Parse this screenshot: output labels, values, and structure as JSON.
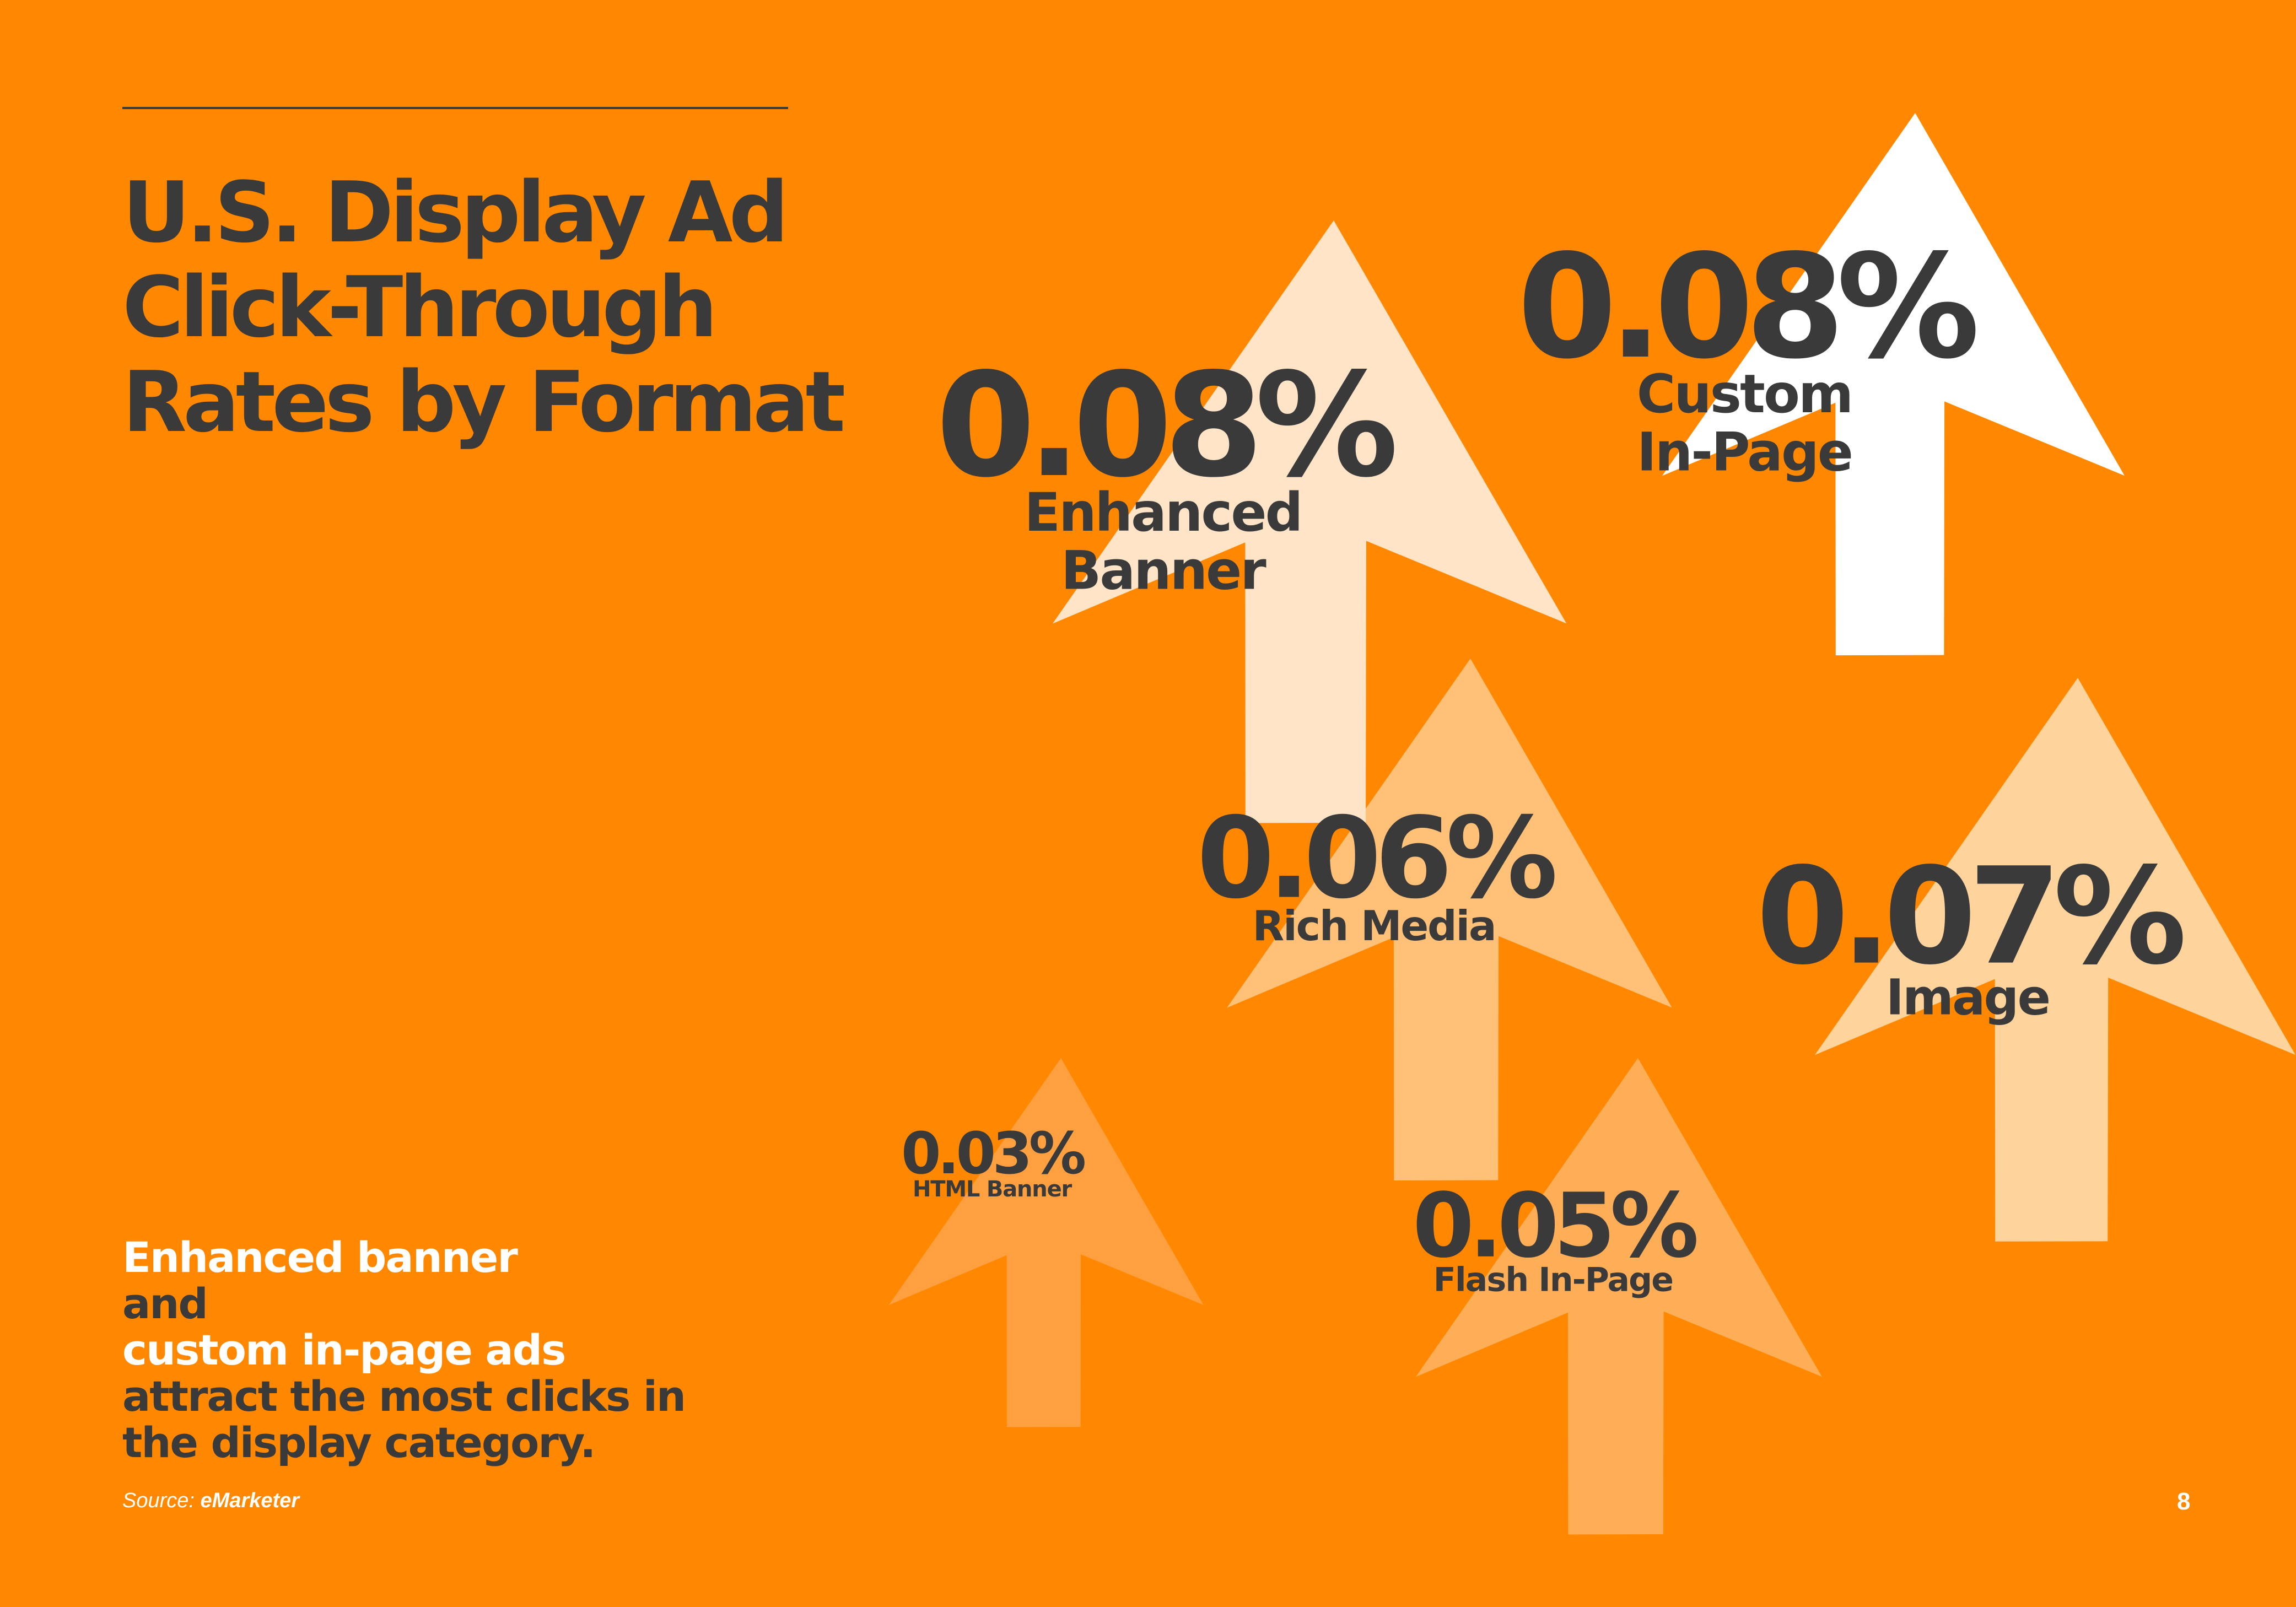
{
  "header": {
    "title_lines": [
      "U.S. Display Ad",
      "Click-Through",
      "Rates by Format"
    ]
  },
  "caption": {
    "highlight_1": "Enhanced banner",
    "line1_rest": " and",
    "line2": "custom in-page ads",
    "line3": "attract the most clicks in",
    "line4": "the display category.",
    "highlight_color": "#FFFFFF",
    "text_color": "#3A3A3A"
  },
  "source": {
    "prefix": "Source: ",
    "name": "eMarketer"
  },
  "page_number": "8",
  "colors": {
    "background": "#FF8800",
    "text": "#3A3A3A",
    "rule": "#3A3A3A"
  },
  "chart_data": {
    "type": "bar",
    "categories": [
      "Enhanced Banner",
      "Custom In-Page",
      "Rich Media",
      "Image",
      "HTML Banner",
      "Flash In-Page"
    ],
    "values": [
      0.08,
      0.08,
      0.06,
      0.07,
      0.03,
      0.05
    ],
    "value_labels": [
      "0.08%",
      "0.08%",
      "0.06%",
      "0.07%",
      "0.03%",
      "0.05%"
    ],
    "category_label_lines": [
      [
        "Enhanced",
        "Banner"
      ],
      [
        "Custom",
        "In-Page"
      ],
      [
        "Rich Media"
      ],
      [
        "Image"
      ],
      [
        "HTML Banner"
      ],
      [
        "Flash In-Page"
      ]
    ],
    "mark_colors": [
      "#FFE4C8",
      "#FFFFFF",
      "#FFC078",
      "#FFD49C",
      "#FFA040",
      "#FFAE58"
    ],
    "mark_shape": "cursor-arrow",
    "unit": "%"
  }
}
